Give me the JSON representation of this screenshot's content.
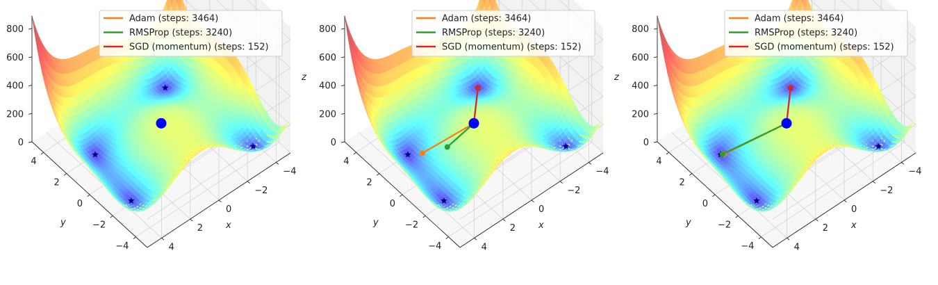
{
  "chart_data": [
    {
      "type": "surface3d",
      "surface": "Himmelblau function z = (x^2 + y - 11)^2 + (x + y^2 - 7)^2",
      "x_ticks": [
        -4,
        -2,
        0,
        2,
        4
      ],
      "y_ticks": [
        -4,
        -2,
        0,
        2,
        4
      ],
      "z_ticks": [
        0,
        200,
        400,
        600,
        800
      ],
      "xlabel": "x",
      "ylabel": "y",
      "zlabel": "z",
      "xlim": [
        -5,
        5
      ],
      "ylim": [
        -5,
        5
      ],
      "zlim": [
        0,
        890
      ],
      "minima": [
        [
          3,
          2
        ],
        [
          -2.805,
          3.131
        ],
        [
          -3.779,
          -3.283
        ],
        [
          3.584,
          -1.848
        ]
      ],
      "start_point": [
        0,
        0,
        170
      ],
      "legend": {
        "position": "top-right",
        "entries": [
          {
            "label": "Adam (steps: 3464)",
            "color": "#ff7f0e"
          },
          {
            "label": "RMSProp (steps: 3240)",
            "color": "#2ca02c"
          },
          {
            "label": "SGD (momentum) (steps: 152)",
            "color": "#d62728"
          }
        ]
      },
      "series": [],
      "start_marker": {
        "color": "#0000ff"
      }
    },
    {
      "type": "surface3d",
      "surface": "Himmelblau function z = (x^2 + y - 11)^2 + (x + y^2 - 7)^2",
      "x_ticks": [
        -4,
        -2,
        0,
        2,
        4
      ],
      "y_ticks": [
        -4,
        -2,
        0,
        2,
        4
      ],
      "z_ticks": [
        0,
        200,
        400,
        600,
        800
      ],
      "xlabel": "x",
      "ylabel": "y",
      "zlabel": "z",
      "xlim": [
        -5,
        5
      ],
      "ylim": [
        -5,
        5
      ],
      "zlim": [
        0,
        890
      ],
      "minima": [
        [
          3,
          2
        ],
        [
          -2.805,
          3.131
        ],
        [
          -3.779,
          -3.283
        ],
        [
          3.584,
          -1.848
        ]
      ],
      "start_point": [
        0,
        0,
        170
      ],
      "legend": {
        "position": "top-right",
        "entries": [
          {
            "label": "Adam (steps: 3464)",
            "color": "#ff7f0e"
          },
          {
            "label": "RMSProp (steps: 3240)",
            "color": "#2ca02c"
          },
          {
            "label": "SGD (momentum) (steps: 152)",
            "color": "#d62728"
          }
        ]
      },
      "series": [
        {
          "name": "Adam (steps: 3464)",
          "color": "#ff7f0e",
          "path": [
            [
              0,
              0,
              170
            ],
            [
              2.35,
              1.55,
              0
            ]
          ]
        },
        {
          "name": "RMSProp (steps: 3240)",
          "color": "#2ca02c",
          "path": [
            [
              0,
              0,
              170
            ],
            [
              1.25,
              0.75,
              30
            ]
          ]
        },
        {
          "name": "SGD (momentum) (steps: 152)",
          "color": "#d62728",
          "path": [
            [
              0,
              0,
              170
            ],
            [
              -2.805,
              3.131,
              0
            ]
          ]
        }
      ],
      "start_marker": {
        "color": "#0000ff"
      }
    },
    {
      "type": "surface3d",
      "surface": "Himmelblau function z = (x^2 + y - 11)^2 + (x + y^2 - 7)^2",
      "x_ticks": [
        -4,
        -2,
        0,
        2,
        4
      ],
      "y_ticks": [
        -4,
        -2,
        0,
        2,
        4
      ],
      "z_ticks": [
        0,
        200,
        400,
        600,
        800
      ],
      "xlabel": "x",
      "ylabel": "y",
      "zlabel": "z",
      "xlim": [
        -5,
        5
      ],
      "ylim": [
        -5,
        5
      ],
      "zlim": [
        0,
        890
      ],
      "minima": [
        [
          3,
          2
        ],
        [
          -2.805,
          3.131
        ],
        [
          -3.779,
          -3.283
        ],
        [
          3.584,
          -1.848
        ]
      ],
      "start_point": [
        0,
        0,
        170
      ],
      "legend": {
        "position": "top-right",
        "entries": [
          {
            "label": "Adam (steps: 3464)",
            "color": "#ff7f0e"
          },
          {
            "label": "RMSProp (steps: 3240)",
            "color": "#2ca02c"
          },
          {
            "label": "SGD (momentum) (steps: 152)",
            "color": "#d62728"
          }
        ]
      },
      "series": [
        {
          "name": "Adam (steps: 3464)",
          "color": "#ff7f0e",
          "path": [
            [
              0,
              0,
              170
            ],
            [
              2.85,
              1.9,
              0
            ]
          ]
        },
        {
          "name": "RMSProp (steps: 3240)",
          "color": "#2ca02c",
          "path": [
            [
              0,
              0,
              170
            ],
            [
              2.9,
              1.95,
              0
            ]
          ]
        },
        {
          "name": "SGD (momentum) (steps: 152)",
          "color": "#d62728",
          "path": [
            [
              0,
              0,
              170
            ],
            [
              -2.805,
              3.131,
              0
            ]
          ]
        }
      ],
      "start_marker": {
        "color": "#0000ff"
      }
    }
  ]
}
